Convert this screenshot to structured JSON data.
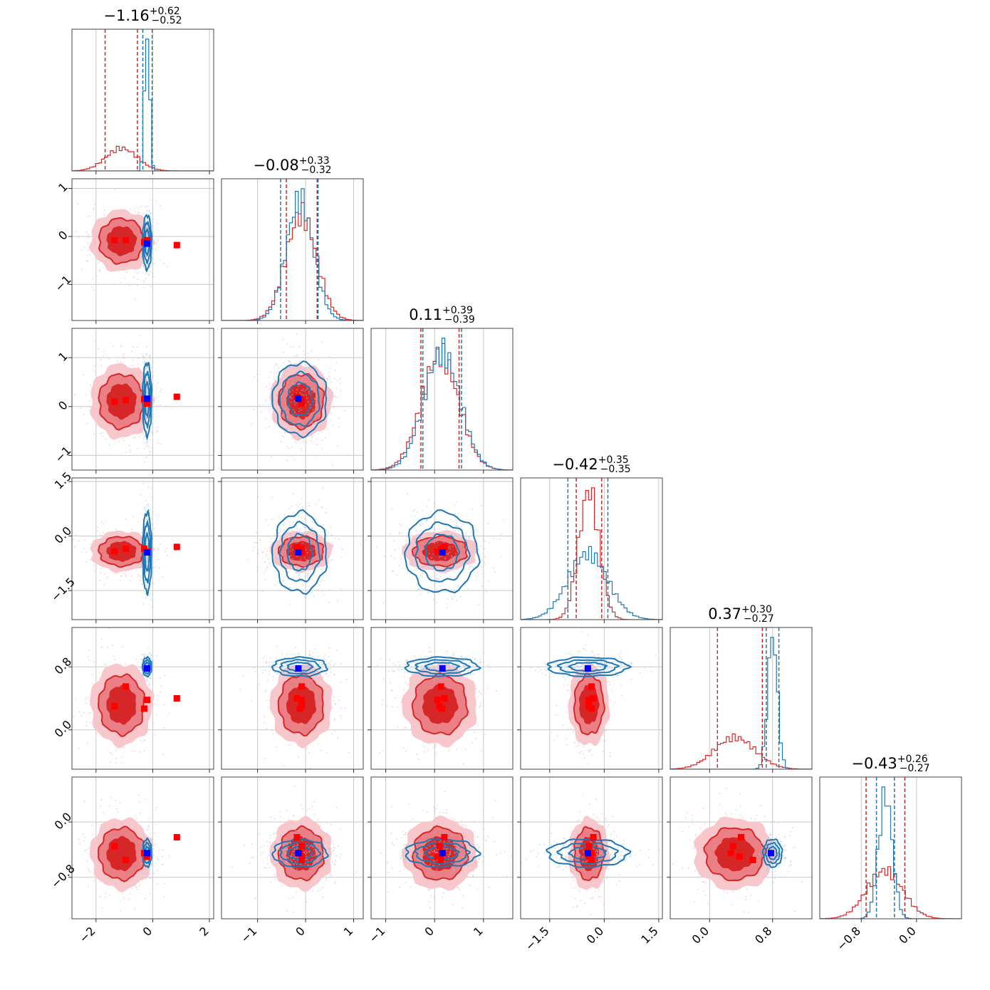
{
  "colors": {
    "red": "#d62728",
    "blue": "#1f77b4",
    "red_marker": "#ff0000",
    "blue_marker": "#0000ff",
    "grid": "#c8c8c8",
    "frame": "#444444"
  },
  "chart_data": {
    "type": "corner",
    "title": "",
    "parameters": [
      {
        "title_main": "−1.16",
        "title_plus": "+0.62",
        "title_minus": "−0.52",
        "range": [
          -2.85,
          2.15
        ],
        "bottom_ticks": [
          {
            "v": -2,
            "label": "−2"
          },
          {
            "v": 0,
            "label": "0"
          },
          {
            "v": 2,
            "label": "2"
          }
        ],
        "left_ticks": []
      },
      {
        "title_main": "−0.08",
        "title_plus": "+0.33",
        "title_minus": "−0.32",
        "range": [
          -1.75,
          1.2
        ],
        "bottom_ticks": [
          {
            "v": -1,
            "label": "−1"
          },
          {
            "v": 0,
            "label": "0"
          },
          {
            "v": 1,
            "label": "1"
          }
        ],
        "left_ticks": [
          {
            "v": 1,
            "label": "1"
          },
          {
            "v": 0,
            "label": "0"
          },
          {
            "v": -1,
            "label": "−1"
          }
        ]
      },
      {
        "title_main": "0.11",
        "title_plus": "+0.39",
        "title_minus": "−0.39",
        "range": [
          -1.3,
          1.6
        ],
        "bottom_ticks": [
          {
            "v": -1,
            "label": "−1"
          },
          {
            "v": 0,
            "label": "0"
          },
          {
            "v": 1,
            "label": "1"
          }
        ],
        "left_ticks": [
          {
            "v": 1,
            "label": "1"
          },
          {
            "v": 0,
            "label": "0"
          },
          {
            "v": -1,
            "label": "−1"
          }
        ]
      },
      {
        "title_main": "−0.42",
        "title_plus": "+0.35",
        "title_minus": "−0.35",
        "range": [
          -2.3,
          1.6
        ],
        "bottom_ticks": [
          {
            "v": -1.5,
            "label": "−1.5"
          },
          {
            "v": 0,
            "label": "0.0"
          },
          {
            "v": 1.5,
            "label": "1.5"
          }
        ],
        "left_ticks": [
          {
            "v": 1.5,
            "label": "1.5"
          },
          {
            "v": 0,
            "label": "0.0"
          },
          {
            "v": -1.5,
            "label": "−1.5"
          }
        ]
      },
      {
        "title_main": "0.37",
        "title_plus": "+0.30",
        "title_minus": "−0.27",
        "range": [
          -0.5,
          1.3
        ],
        "bottom_ticks": [
          {
            "v": 0,
            "label": "0.0"
          },
          {
            "v": 0.8,
            "label": "0.8"
          }
        ],
        "left_ticks": [
          {
            "v": 0.8,
            "label": "0.8"
          },
          {
            "v": 0,
            "label": "0.0"
          }
        ]
      },
      {
        "title_main": "−0.43",
        "title_plus": "+0.26",
        "title_minus": "−0.27",
        "range": [
          -1.4,
          0.65
        ],
        "bottom_ticks": [
          {
            "v": -0.8,
            "label": "−0.8"
          },
          {
            "v": 0,
            "label": "0.0"
          }
        ],
        "left_ticks": [
          {
            "v": 0,
            "label": "0.0"
          },
          {
            "v": -0.8,
            "label": "−0.8"
          }
        ]
      }
    ],
    "series": [
      {
        "color": "red",
        "mean": [
          -1.1,
          -0.09,
          0.11,
          -0.42,
          0.32,
          -0.46
        ],
        "sigma": [
          0.55,
          0.32,
          0.38,
          0.28,
          0.26,
          0.26
        ],
        "quantiles": [
          [
            -1.68,
            -0.54
          ],
          [
            -0.4,
            0.24
          ],
          [
            -0.28,
            0.5
          ],
          [
            -0.77,
            -0.07
          ],
          [
            0.1,
            0.67
          ],
          [
            -0.73,
            -0.17
          ]
        ]
      },
      {
        "color": "blue",
        "mean": [
          -0.2,
          -0.12,
          0.15,
          -0.45,
          0.8,
          -0.45
        ],
        "sigma": [
          0.08,
          0.28,
          0.37,
          0.55,
          0.06,
          0.1
        ],
        "quantiles": [
          [
            -0.35,
            -0.02
          ],
          [
            -0.52,
            0.26
          ],
          [
            -0.24,
            0.55
          ],
          [
            -1.0,
            0.1
          ],
          [
            0.72,
            0.88
          ],
          [
            -0.58,
            -0.32
          ]
        ]
      }
    ],
    "markers": {
      "red": [
        [
          -1.35,
          -0.08,
          0.1,
          -0.42,
          0.3,
          -0.35
        ],
        [
          -0.95,
          -0.08,
          0.13,
          -0.35,
          0.55,
          -0.55
        ],
        [
          -0.3,
          -0.12,
          0.15,
          -0.35,
          0.27,
          -0.45
        ],
        [
          0.85,
          -0.18,
          0.2,
          -0.3,
          0.4,
          -0.22
        ],
        [
          -0.2,
          -0.08,
          0.06,
          -0.43,
          0.38,
          -0.5
        ]
      ],
      "blue": [
        [
          -0.2,
          -0.15,
          0.16,
          -0.45,
          0.78,
          -0.45
        ]
      ]
    }
  }
}
